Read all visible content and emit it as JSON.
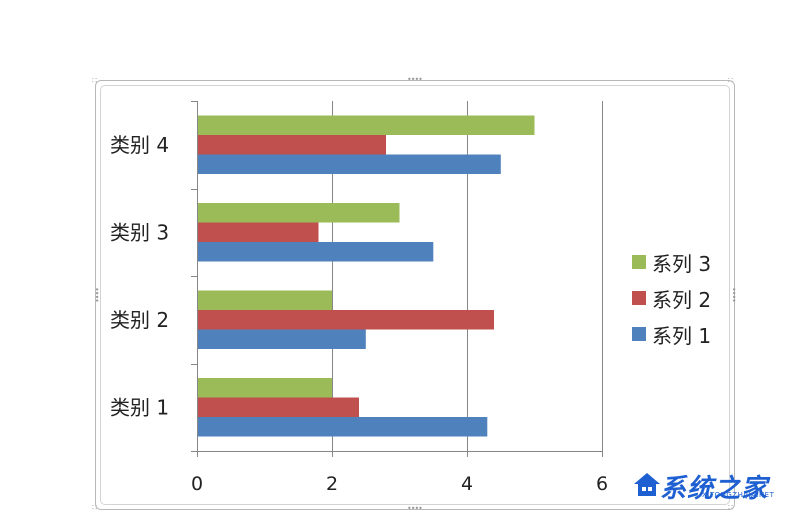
{
  "chart_data": {
    "type": "bar",
    "orientation": "horizontal",
    "categories": [
      "类别 1",
      "类别 2",
      "类别 3",
      "类别 4"
    ],
    "series": [
      {
        "name": "系列 1",
        "color": "#4f81bd",
        "values": [
          4.3,
          2.5,
          3.5,
          4.5
        ]
      },
      {
        "name": "系列 2",
        "color": "#c0504d",
        "values": [
          2.4,
          4.4,
          1.8,
          2.8
        ]
      },
      {
        "name": "系列 3",
        "color": "#9bbb59",
        "values": [
          2,
          2,
          3,
          5
        ]
      }
    ],
    "xlim": [
      0,
      6
    ],
    "xticks": [
      "0",
      "2",
      "4",
      "6"
    ],
    "grid": true,
    "legend_position": "right",
    "legend_order": [
      "系列 3",
      "系列 2",
      "系列 1"
    ]
  },
  "watermark": {
    "logo_text": "系统之家",
    "url_text": "XITONGZHIJIA.NET"
  },
  "grid_color": "#868686",
  "axis_color": "#868686"
}
